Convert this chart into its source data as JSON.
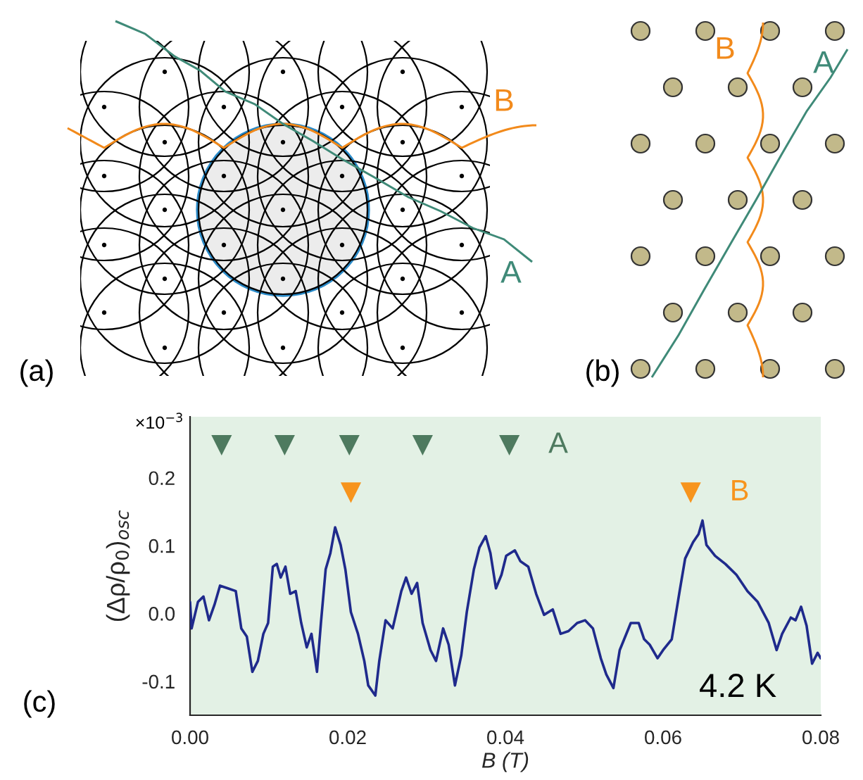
{
  "chart_data": {
    "type": "line",
    "xlabel": "B (T)",
    "ylabel": "(Δρ/ρ$_{0}$)$_{osc}$",
    "xlim": [
      0,
      0.08
    ],
    "xticks": [
      {
        "value": 0,
        "label": "0.00"
      },
      {
        "value": 0.02,
        "label": "0.02"
      },
      {
        "value": 0.04,
        "label": "0.04"
      },
      {
        "value": 0.06,
        "label": "0.06"
      },
      {
        "value": 0.08,
        "label": "0.08"
      }
    ],
    "ylim": [
      -0.15,
      0.29
    ],
    "yticks": [
      {
        "value": -0.1,
        "label": "-0.1"
      },
      {
        "value": 0,
        "label": "0.0"
      },
      {
        "value": 0.1,
        "label": "0.1"
      },
      {
        "value": 0.2,
        "label": "0.2"
      }
    ],
    "grid": false,
    "legend": false,
    "annotations": [
      "×10$^{−3}$",
      "4.2 K",
      "(c)",
      "(a)",
      "(b)",
      "A",
      "B",
      "A",
      "B"
    ],
    "series": [
      {
        "color": "#1f2a8c",
        "line_style": "solid",
        "marker": "none",
        "x": [
          0.0,
          0.0002,
          0.001,
          0.0017,
          0.0024,
          0.0031,
          0.0038,
          0.0048,
          0.0058,
          0.0065,
          0.0072,
          0.0079,
          0.0086,
          0.0093,
          0.0099,
          0.0105,
          0.011,
          0.0115,
          0.0121,
          0.0127,
          0.0134,
          0.0141,
          0.0148,
          0.0154,
          0.0161,
          0.0166,
          0.0172,
          0.0178,
          0.0184,
          0.0191,
          0.0197,
          0.0204,
          0.0213,
          0.0221,
          0.0226,
          0.0235,
          0.024,
          0.0248,
          0.0257,
          0.0268,
          0.0274,
          0.0281,
          0.0288,
          0.0295,
          0.0305,
          0.0312,
          0.0321,
          0.0328,
          0.0336,
          0.0344,
          0.0351,
          0.036,
          0.0367,
          0.0375,
          0.0381,
          0.0388,
          0.0395,
          0.0401,
          0.0412,
          0.0419,
          0.0429,
          0.0439,
          0.0449,
          0.046,
          0.047,
          0.048,
          0.0491,
          0.0501,
          0.0511,
          0.0521,
          0.0528,
          0.0537,
          0.0545,
          0.0559,
          0.0569,
          0.0576,
          0.0583,
          0.0593,
          0.06,
          0.0611,
          0.0621,
          0.0628,
          0.0638,
          0.0645,
          0.065,
          0.0655,
          0.0666,
          0.0679,
          0.0693,
          0.0707,
          0.072,
          0.0734,
          0.0744,
          0.0751,
          0.0762,
          0.0768,
          0.0775,
          0.0782,
          0.0789,
          0.0796,
          0.08
        ],
        "values": [
          0.017,
          -0.022,
          0.017,
          0.025,
          -0.01,
          0.013,
          0.041,
          0.037,
          0.033,
          -0.022,
          -0.034,
          -0.086,
          -0.07,
          -0.03,
          -0.014,
          0.069,
          0.073,
          0.053,
          0.069,
          0.029,
          0.033,
          -0.014,
          -0.05,
          -0.03,
          -0.086,
          -0.014,
          0.065,
          0.089,
          0.127,
          0.101,
          0.065,
          0.002,
          -0.03,
          -0.07,
          -0.106,
          -0.121,
          -0.07,
          -0.01,
          -0.022,
          0.033,
          0.053,
          0.029,
          0.045,
          -0.014,
          -0.054,
          -0.07,
          -0.022,
          -0.046,
          -0.106,
          -0.062,
          0.002,
          0.065,
          0.097,
          0.114,
          0.089,
          0.037,
          0.057,
          0.085,
          0.093,
          0.077,
          0.069,
          0.029,
          -0.002,
          0.006,
          -0.03,
          -0.026,
          -0.014,
          -0.01,
          -0.022,
          -0.066,
          -0.09,
          -0.11,
          -0.054,
          -0.014,
          -0.014,
          -0.038,
          -0.046,
          -0.066,
          -0.054,
          -0.038,
          0.033,
          0.081,
          0.105,
          0.117,
          0.137,
          0.101,
          0.085,
          0.073,
          0.057,
          0.033,
          0.017,
          -0.014,
          -0.054,
          -0.03,
          -0.006,
          -0.01,
          0.01,
          -0.018,
          -0.074,
          -0.058,
          -0.066
        ]
      },
      {
        "type": "scatter",
        "name": "A",
        "color": "#4e7a5f",
        "marker": "triangle",
        "x": [
          0.004,
          0.012,
          0.0202,
          0.0295,
          0.0405
        ],
        "values": [
          0.248,
          0.248,
          0.248,
          0.248,
          0.248
        ]
      },
      {
        "type": "scatter",
        "name": "B",
        "color": "#f7941d",
        "marker": "triangle",
        "x": [
          0.0204,
          0.0635
        ],
        "values": [
          0.178,
          0.178
        ]
      }
    ]
  }
}
